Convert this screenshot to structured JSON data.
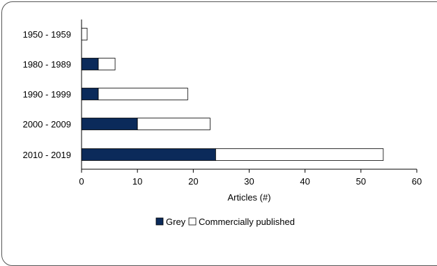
{
  "colors": {
    "grey": "#0b2a5a",
    "commercial": "#ffffff",
    "outline": "#000000"
  },
  "chart_data": {
    "type": "bar",
    "orientation": "horizontal",
    "stacked": true,
    "categories": [
      "1950 - 1959",
      "1980 - 1989",
      "1990 - 1999",
      "2000 - 2009",
      "2010 - 2019"
    ],
    "series": [
      {
        "name": "Grey",
        "values": [
          0,
          3,
          3,
          10,
          24
        ]
      },
      {
        "name": "Commercially published",
        "values": [
          1,
          3,
          16,
          13,
          30
        ]
      }
    ],
    "xlabel": "Articles (#)",
    "ylabel": "",
    "xlim": [
      0,
      60
    ],
    "xticks": [
      0,
      10,
      20,
      30,
      40,
      50,
      60
    ],
    "grid": false,
    "legend": "bottom"
  }
}
